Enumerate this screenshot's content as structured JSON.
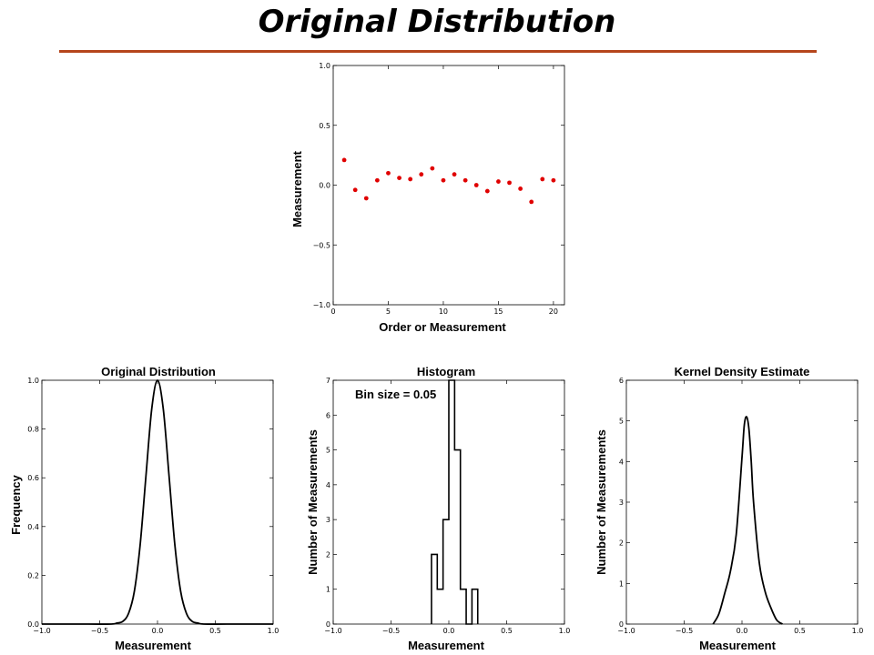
{
  "title": "Original Distribution",
  "colors": {
    "title_rule": "#b5451b",
    "points": "#e00000",
    "line": "#000000"
  },
  "chart_data": [
    {
      "id": "scatter",
      "type": "scatter",
      "title": "",
      "xlabel": "Order or Measurement",
      "ylabel": "Measurement",
      "xlim": [
        0,
        21
      ],
      "ylim": [
        -1.0,
        1.0
      ],
      "xticks": [
        0,
        5,
        10,
        15,
        20
      ],
      "xtick_labels": [
        "0",
        "5",
        "10",
        "15",
        "20"
      ],
      "yticks": [
        -1.0,
        -0.5,
        0.0,
        0.5,
        1.0
      ],
      "ytick_labels": [
        "−1.0",
        "−0.5",
        "0.0",
        "0.5",
        "1.0"
      ],
      "x": [
        1,
        2,
        3,
        4,
        5,
        6,
        7,
        8,
        9,
        10,
        11,
        12,
        13,
        14,
        15,
        16,
        17,
        18,
        19,
        20
      ],
      "y": [
        0.21,
        -0.04,
        -0.11,
        0.04,
        0.1,
        0.06,
        0.05,
        0.09,
        0.14,
        0.04,
        0.09,
        0.04,
        0.0,
        -0.05,
        0.03,
        0.02,
        -0.03,
        -0.14,
        0.05,
        0.04
      ],
      "color": "#e00000",
      "grid": false
    },
    {
      "id": "original",
      "type": "line",
      "title": "Original Distribution",
      "xlabel": "Measurement",
      "ylabel": "Frequency",
      "xlim": [
        -1.0,
        1.0
      ],
      "ylim": [
        0.0,
        1.0
      ],
      "xticks": [
        -1.0,
        -0.5,
        0.0,
        0.5,
        1.0
      ],
      "xtick_labels": [
        "−1.0",
        "−0.5",
        "0.0",
        "0.5",
        "1.0"
      ],
      "yticks": [
        0.0,
        0.2,
        0.4,
        0.6,
        0.8,
        1.0
      ],
      "ytick_labels": [
        "0.0",
        "0.2",
        "0.4",
        "0.6",
        "0.8",
        "1.0"
      ],
      "x": [
        -1.0,
        -0.6,
        -0.4,
        -0.35,
        -0.3,
        -0.25,
        -0.2,
        -0.15,
        -0.1,
        -0.05,
        0.0,
        0.05,
        0.1,
        0.15,
        0.2,
        0.25,
        0.3,
        0.35,
        0.4,
        0.6,
        1.0
      ],
      "y": [
        0.0,
        0.0,
        0.0,
        0.004,
        0.011,
        0.044,
        0.135,
        0.325,
        0.607,
        0.882,
        1.0,
        0.882,
        0.607,
        0.325,
        0.135,
        0.044,
        0.011,
        0.004,
        0.0,
        0.0,
        0.0
      ],
      "grid": false
    },
    {
      "id": "histogram",
      "type": "bar",
      "title": "Histogram",
      "xlabel": "Measurement",
      "ylabel": "Number of Measurements",
      "annotation": "Bin size = 0.05",
      "xlim": [
        -1.0,
        1.0
      ],
      "ylim": [
        0,
        7
      ],
      "xticks": [
        -1.0,
        -0.5,
        0.0,
        0.5,
        1.0
      ],
      "xtick_labels": [
        "−1.0",
        "−0.5",
        "0.0",
        "0.5",
        "1.0"
      ],
      "yticks": [
        0,
        1,
        2,
        3,
        4,
        5,
        6,
        7
      ],
      "ytick_labels": [
        "0",
        "1",
        "2",
        "3",
        "4",
        "5",
        "6",
        "7"
      ],
      "bin_edges": [
        -0.15,
        -0.1,
        -0.05,
        0.0,
        0.05,
        0.1,
        0.15,
        0.2,
        0.25
      ],
      "values": [
        2,
        1,
        3,
        7,
        5,
        1,
        0,
        1
      ],
      "grid": false
    },
    {
      "id": "kde",
      "type": "line",
      "title": "Kernel Density Estimate",
      "xlabel": "Measurement",
      "ylabel": "Number of Measurements",
      "xlim": [
        -1.0,
        1.0
      ],
      "ylim": [
        0,
        6
      ],
      "xticks": [
        -1.0,
        -0.5,
        0.0,
        0.5,
        1.0
      ],
      "xtick_labels": [
        "−1.0",
        "−0.5",
        "0.0",
        "0.5",
        "1.0"
      ],
      "yticks": [
        0,
        1,
        2,
        3,
        4,
        5,
        6
      ],
      "ytick_labels": [
        "0",
        "1",
        "2",
        "3",
        "4",
        "5",
        "6"
      ],
      "x": [
        -0.25,
        -0.2,
        -0.15,
        -0.1,
        -0.05,
        0.0,
        0.02,
        0.04,
        0.06,
        0.08,
        0.1,
        0.15,
        0.2,
        0.25,
        0.3,
        0.35
      ],
      "y": [
        0.0,
        0.25,
        0.75,
        1.3,
        2.2,
        4.1,
        4.9,
        5.1,
        4.8,
        4.0,
        3.0,
        1.5,
        0.8,
        0.4,
        0.1,
        0.0
      ],
      "grid": false
    }
  ]
}
